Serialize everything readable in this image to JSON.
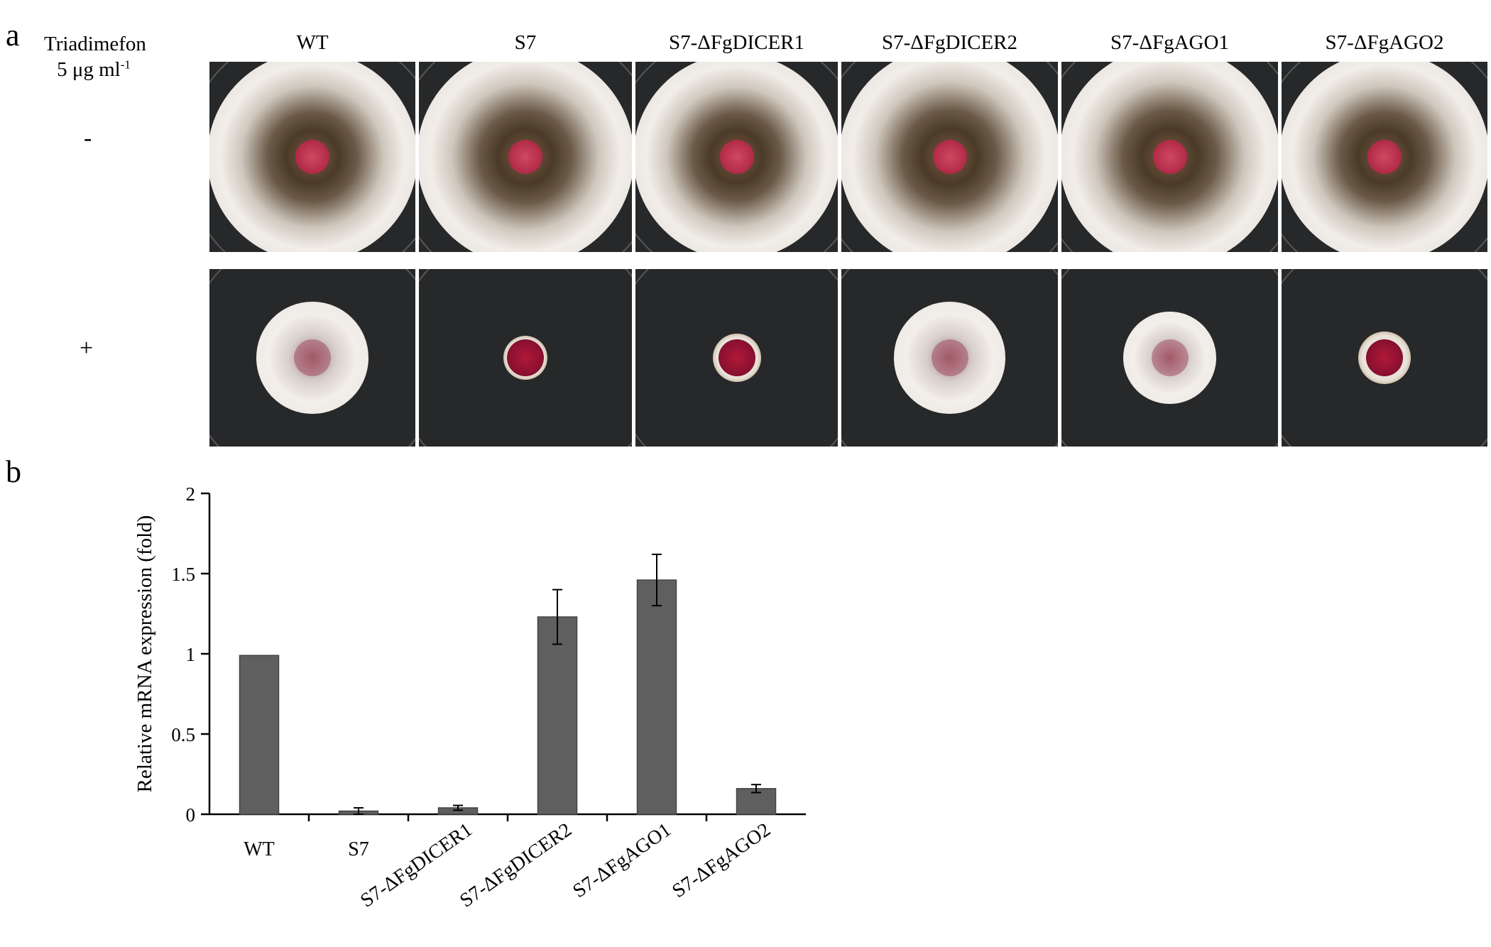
{
  "panel_a": {
    "label": "a",
    "treatment_line1": "Triadimefon",
    "treatment_line2_main": "5 μg ml",
    "treatment_line2_sup": "-1",
    "row_minus": "-",
    "row_plus": "+",
    "strains": [
      "WT",
      "S7",
      "S7-ΔFgDICER1",
      "S7-ΔFgDICER2",
      "S7-ΔFgAGO1",
      "S7-ΔFgAGO2"
    ],
    "growth_with_triadimefon": [
      0.7,
      0.0,
      0.05,
      0.7,
      0.58,
      0.1
    ]
  },
  "panel_b": {
    "label": "b"
  },
  "colors": {
    "bar": "#5f5f5f",
    "plate_bg": "#272829",
    "mycelium": "#efebe6",
    "plug": "#9a1234"
  },
  "chart_data": {
    "type": "bar",
    "categories": [
      "WT",
      "S7",
      "S7-ΔFgDICER1",
      "S7-ΔFgDICER2",
      "S7-ΔFgAGO1",
      "S7-ΔFgAGO2"
    ],
    "values": [
      0.99,
      0.02,
      0.04,
      1.23,
      1.46,
      0.16
    ],
    "errors": [
      0.0,
      0.02,
      0.015,
      0.17,
      0.16,
      0.025
    ],
    "ylabel": "Relative mRNA expression (fold)",
    "xlabel": "",
    "ylim": [
      0,
      2
    ],
    "yticks": [
      "0",
      "0.5",
      "1",
      "1.5",
      "2"
    ],
    "grid": false
  }
}
